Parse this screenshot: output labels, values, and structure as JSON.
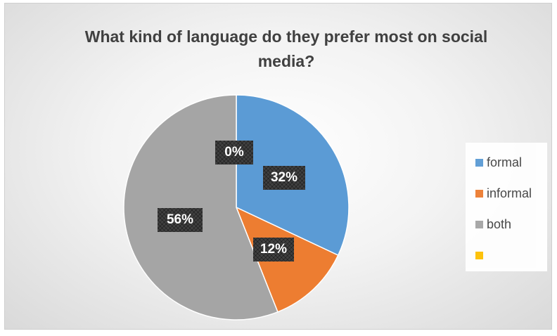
{
  "chart_data": {
    "type": "pie",
    "title": "What kind of language do they prefer most on social media?",
    "categories": [
      "formal",
      "informal",
      "both",
      ""
    ],
    "values": [
      32,
      12,
      56,
      0
    ],
    "data_labels": [
      "32%",
      "12%",
      "56%",
      "0%"
    ],
    "colors": [
      "#5b9bd5",
      "#ed7d31",
      "#a5a5a5",
      "#ffc000"
    ],
    "legend_position": "right"
  }
}
